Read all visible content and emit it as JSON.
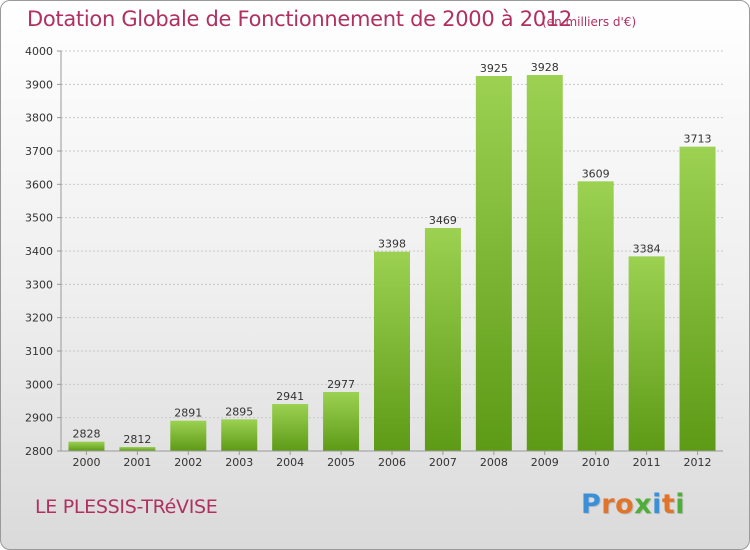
{
  "title": "Dotation Globale de Fonctionnement de 2000 à 2012",
  "unit_note": "(en milliers d'€)",
  "place_name": "LE PLESSIS-TRéVISE",
  "logo": {
    "text": "Proxiti",
    "letters": [
      {
        "ch": "P",
        "color": "#3a8fd6"
      },
      {
        "ch": "r",
        "color": "#e0742a"
      },
      {
        "ch": "o",
        "color": "#e0742a"
      },
      {
        "ch": "x",
        "color": "#4fae3a"
      },
      {
        "ch": "i",
        "color": "#3a8fd6"
      },
      {
        "ch": "t",
        "color": "#e0742a"
      },
      {
        "ch": "i",
        "color": "#4fae3a"
      }
    ]
  },
  "colors": {
    "bar_top": "#9cd152",
    "bar_bottom": "#5d9a16",
    "grid": "#c8c8c8",
    "axis": "#999999",
    "text_accent": "#b03060"
  },
  "chart_data": {
    "type": "bar",
    "categories": [
      "2000",
      "2001",
      "2002",
      "2003",
      "2004",
      "2005",
      "2006",
      "2007",
      "2008",
      "2009",
      "2010",
      "2011",
      "2012"
    ],
    "values": [
      2828,
      2812,
      2891,
      2895,
      2941,
      2977,
      3398,
      3469,
      3925,
      3928,
      3609,
      3384,
      3713
    ],
    "ylim": [
      2800,
      4000
    ],
    "yticks": [
      2800,
      2900,
      3000,
      3100,
      3200,
      3300,
      3400,
      3500,
      3600,
      3700,
      3800,
      3900,
      4000
    ],
    "grid": true,
    "data_labels": true
  }
}
